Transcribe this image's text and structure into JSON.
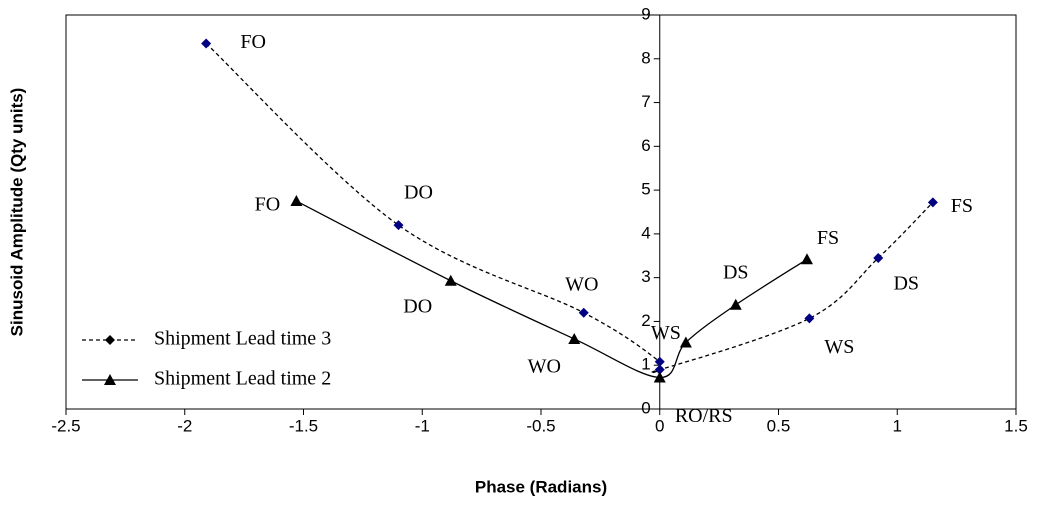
{
  "chart_data": {
    "type": "scatter",
    "xlabel": "Phase (Radians)",
    "ylabel": "Sinusoid Amplitude (Qty units)",
    "xlim": [
      -2.5,
      1.5
    ],
    "xticks": [
      -2.5,
      -2,
      -1.5,
      -1,
      -0.5,
      0,
      0.5,
      1,
      1.5
    ],
    "ylim": [
      0,
      9
    ],
    "yticks": [
      0,
      1,
      2,
      3,
      4,
      5,
      6,
      7,
      8,
      9
    ],
    "legend": "lower left",
    "series": [
      {
        "name": "Shipment Lead time 3",
        "color": "#000080",
        "line_color": "#000000",
        "line_style": "dashed",
        "marker": "diamond",
        "x": [
          -1.91,
          -1.1,
          -0.32,
          0,
          0,
          0.63,
          0.92,
          1.15
        ],
        "values": [
          8.35,
          4.2,
          2.2,
          1.08,
          0.9,
          2.07,
          3.45,
          4.72
        ],
        "labels": [
          "FO",
          "DO",
          "WO",
          null,
          null,
          "WS",
          "DS",
          "FS"
        ]
      },
      {
        "name": "Shipment Lead time 2",
        "color": "#000000",
        "line_color": "#000000",
        "line_style": "solid",
        "marker": "triangle",
        "x": [
          -1.53,
          -0.88,
          -0.36,
          0,
          0.11,
          0.32,
          0.62
        ],
        "values": [
          4.75,
          2.93,
          1.6,
          0.72,
          1.52,
          2.38,
          3.42
        ],
        "labels": [
          "FO",
          "DO",
          "WO",
          "RO/RS",
          "WS",
          "DS",
          "FS"
        ]
      }
    ]
  }
}
